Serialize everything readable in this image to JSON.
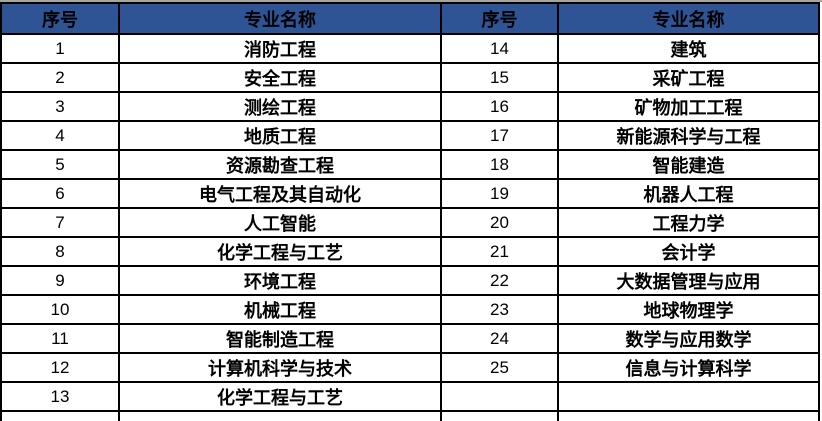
{
  "page": {
    "background": "#ffffff",
    "top_strip_color": "#a6a6a6"
  },
  "theme": {
    "header_bg": "#2F5496",
    "header_text": "#000000",
    "grid_border": "#000000",
    "cell_text": "#000000"
  },
  "tables": [
    {
      "id": "left",
      "headers": [
        "序号",
        "专业名称"
      ],
      "rows": [
        [
          "1",
          "消防工程"
        ],
        [
          "2",
          "安全工程"
        ],
        [
          "3",
          "测绘工程"
        ],
        [
          "4",
          "地质工程"
        ],
        [
          "5",
          "资源勘查工程"
        ],
        [
          "6",
          "电气工程及其自动化"
        ],
        [
          "7",
          "人工智能"
        ],
        [
          "8",
          "化学工程与工艺"
        ],
        [
          "9",
          "环境工程"
        ],
        [
          "10",
          "机械工程"
        ],
        [
          "11",
          "智能制造工程"
        ],
        [
          "12",
          "计算机科学与技术"
        ],
        [
          "13",
          "化学工程与工艺"
        ],
        [
          "",
          ""
        ]
      ]
    },
    {
      "id": "right",
      "headers": [
        "序号",
        "专业名称"
      ],
      "rows": [
        [
          "14",
          "建筑"
        ],
        [
          "15",
          "采矿工程"
        ],
        [
          "16",
          "矿物加工工程"
        ],
        [
          "17",
          "新能源科学与工程"
        ],
        [
          "18",
          "智能建造"
        ],
        [
          "19",
          "机器人工程"
        ],
        [
          "20",
          "工程力学"
        ],
        [
          "21",
          "会计学"
        ],
        [
          "22",
          "大数据管理与应用"
        ],
        [
          "23",
          "地球物理学"
        ],
        [
          "24",
          "数学与应用数学"
        ],
        [
          "25",
          "信息与计算科学"
        ],
        [
          "",
          ""
        ],
        [
          "",
          ""
        ]
      ]
    }
  ]
}
